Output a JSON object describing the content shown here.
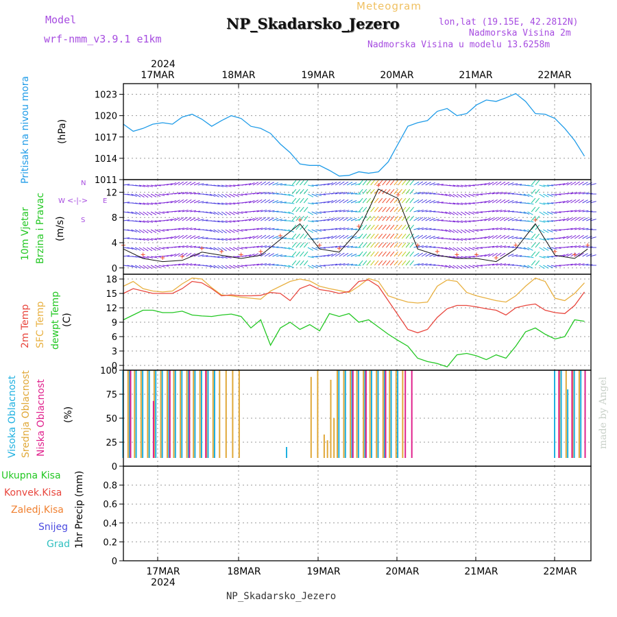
{
  "header": {
    "model_label": "Model",
    "model_value": "wrf-nmm_v3.9.1 e1km",
    "meteogram_label": "Meteogram",
    "station_title": "NP_Skadarsko_Jezero",
    "lonlat": "lon,lat (19.15E, 42.2812N)",
    "elevation": "Nadmorska Visina 2m",
    "model_elevation": "Nadmorska Visina u modelu 13.6258m",
    "watermark": "made by Angel",
    "footer_station": "NP_Skadarsko_Jezero"
  },
  "x_axis": {
    "year": "2024",
    "dates": [
      "17MAR",
      "18MAR",
      "19MAR",
      "20MAR",
      "21MAR",
      "22MAR"
    ]
  },
  "panels": {
    "pressure": {
      "label1": "Pritisak na nivou mora",
      "unit": "(hPa)"
    },
    "wind": {
      "label1": "10m Vjetar",
      "label2": "Brzina i Pravac",
      "unit": "(m/s)",
      "compass": [
        "N",
        "E",
        "S",
        "W"
      ]
    },
    "temp": {
      "label1": "2m Temp",
      "label2": "SFC Temp",
      "label3": "dewpt Temp",
      "unit": "(C)"
    },
    "cloud": {
      "label1": "Visoka Oblacnost",
      "label2": "Srednja Oblacnost",
      "label3": "Niska Oblacnost",
      "unit": "(%)"
    },
    "precip": {
      "unit": "1hr Precip (mm)",
      "legend": [
        "Ukupna Kisa",
        "Konvek.Kisa",
        "Zaledj.Kisa",
        "Snijeg",
        "Grad"
      ]
    }
  },
  "colors": {
    "pressure": "#1e9be8",
    "temp2m": "#e8453c",
    "sfc": "#e8b040",
    "dewpt": "#22c722",
    "cloud_high": "#1eb0e0",
    "cloud_mid": "#e0a838",
    "cloud_low": "#e0208c",
    "total_rain": "#22c722",
    "conv_rain": "#e8453c",
    "freezing": "#f08030",
    "snow": "#4a4ae0",
    "grad": "#30c0c0",
    "title_purple": "#a64ce0",
    "meteogram_gold": "#f0c060"
  },
  "chart_data": [
    {
      "type": "line",
      "name": "pressure",
      "ylabel": "Pritisak na nivou mora (hPa)",
      "ylim": [
        1011,
        1024.5
      ],
      "yticks": [
        1011,
        1014,
        1017,
        1020,
        1023
      ],
      "x_hours": [
        0,
        3,
        6,
        9,
        12,
        15,
        18,
        21,
        24,
        27,
        30,
        33,
        36,
        39,
        42,
        45,
        48,
        51,
        54,
        57,
        60,
        63,
        66,
        69,
        72,
        75,
        78,
        81,
        84,
        87,
        90,
        93,
        96,
        99,
        102,
        105,
        108,
        111,
        114,
        117,
        120,
        123,
        126,
        129,
        132,
        135,
        138,
        141
      ],
      "series": [
        {
          "values": [
            1018.8,
            1017.8,
            1018.2,
            1018.8,
            1019.0,
            1018.8,
            1019.8,
            1020.2,
            1019.5,
            1018.5,
            1019.3,
            1020.0,
            1019.6,
            1018.5,
            1018.2,
            1017.5,
            1016.0,
            1014.8,
            1013.2,
            1013.0,
            1013.0,
            1012.3,
            1011.5,
            1011.6,
            1012.1,
            1011.9,
            1012.1,
            1013.5,
            1016.0,
            1018.5,
            1019.0,
            1019.3,
            1020.6,
            1021.0,
            1020.0,
            1020.3,
            1021.5,
            1022.2,
            1022.0,
            1022.5,
            1023.1,
            1022.0,
            1020.3,
            1020.2,
            1019.6,
            1018.2,
            1016.5,
            1014.3
          ]
        }
      ]
    },
    {
      "type": "line",
      "name": "wind",
      "ylabel": "10m Vjetar Brzina i Pravac (m/s)",
      "ylim": [
        -1,
        14
      ],
      "yticks": [
        0,
        4,
        8,
        12
      ],
      "x_hours": [
        0,
        6,
        12,
        18,
        24,
        30,
        36,
        42,
        48,
        54,
        60,
        66,
        72,
        78,
        84,
        90,
        96,
        102,
        108,
        114,
        120,
        126,
        132,
        138,
        142
      ],
      "series": [
        {
          "name": "speed",
          "values": [
            3.0,
            1.5,
            1.0,
            1.2,
            2.5,
            2.0,
            1.5,
            2.0,
            4.5,
            7.0,
            3.0,
            2.5,
            6.0,
            12.5,
            11.0,
            3.0,
            2.0,
            1.5,
            1.5,
            1.0,
            3.0,
            7.0,
            2.0,
            1.5,
            3.0
          ]
        }
      ]
    },
    {
      "type": "line",
      "name": "temperature",
      "ylabel": "(C)",
      "ylim": [
        -1,
        19
      ],
      "yticks": [
        0,
        3,
        6,
        9,
        12,
        15,
        18
      ],
      "x_hours": [
        0,
        3,
        6,
        9,
        12,
        15,
        18,
        21,
        24,
        27,
        30,
        33,
        36,
        39,
        42,
        45,
        48,
        51,
        54,
        57,
        60,
        63,
        66,
        69,
        72,
        75,
        78,
        81,
        84,
        87,
        90,
        93,
        96,
        99,
        102,
        105,
        108,
        111,
        114,
        117,
        120,
        123,
        126,
        129,
        132,
        135,
        138,
        141
      ],
      "series": [
        {
          "name": "2m Temp",
          "values": [
            15,
            16,
            15.5,
            15,
            15,
            15,
            16,
            17.5,
            17.2,
            16,
            14.5,
            14.7,
            14.5,
            14.5,
            14.6,
            15.2,
            15,
            13.5,
            16,
            16.8,
            15.8,
            15.5,
            15,
            15.4,
            17.5,
            17.8,
            16.5,
            13.5,
            10.5,
            7.5,
            6.8,
            7.5,
            10,
            11.8,
            12.5,
            12.5,
            12.2,
            11.8,
            11.5,
            10.5,
            12,
            12.5,
            12.8,
            11.5,
            11,
            10.8,
            12.5,
            15.3
          ]
        },
        {
          "name": "SFC Temp",
          "values": [
            16.5,
            17.5,
            16,
            15.5,
            15.3,
            15.5,
            17,
            18.2,
            18,
            16.2,
            14.7,
            14.5,
            14.2,
            14,
            13.8,
            15.5,
            16.5,
            17.5,
            18,
            17.6,
            16.5,
            16,
            15.6,
            15.2,
            16.5,
            18.1,
            17.5,
            14.5,
            13.8,
            13.2,
            13,
            13.2,
            16.5,
            17.8,
            17.5,
            15.2,
            14.5,
            14,
            13.5,
            13.2,
            14.5,
            16.5,
            18.2,
            17.5,
            14,
            13.5,
            15,
            17.2
          ]
        },
        {
          "name": "dewpt Temp",
          "values": [
            9.5,
            10.5,
            11.5,
            11.5,
            11,
            11,
            11.3,
            10.5,
            10.3,
            10.2,
            10.5,
            10.7,
            10.2,
            7.8,
            9.5,
            4.2,
            7.8,
            9,
            7.5,
            8.5,
            7.2,
            10.8,
            10.2,
            10.8,
            9,
            9.5,
            8,
            6.5,
            5.2,
            4,
            1.5,
            0.8,
            0.4,
            -0.3,
            2.2,
            2.5,
            2,
            1.2,
            2.2,
            1.5,
            4,
            7,
            7.8,
            6.5,
            5.5,
            6,
            9.5,
            9.2
          ]
        }
      ]
    },
    {
      "type": "bar",
      "name": "cloud cover",
      "ylabel": "(%)",
      "ylim": [
        0,
        100
      ],
      "yticks": [
        0,
        25,
        50,
        75,
        100
      ],
      "series": [
        {
          "name": "Visoka Oblacnost",
          "hours": [
            0,
            2,
            4,
            6,
            8,
            10,
            12,
            14,
            16,
            18,
            20,
            22,
            24,
            26,
            28,
            48,
            50,
            66,
            68,
            70,
            72,
            74,
            76,
            78,
            80,
            82,
            84,
            132,
            134,
            136,
            138,
            140
          ],
          "values": [
            100,
            100,
            100,
            100,
            100,
            100,
            100,
            100,
            100,
            100,
            100,
            100,
            100,
            100,
            100,
            0,
            20,
            100,
            100,
            100,
            100,
            100,
            100,
            100,
            100,
            100,
            100,
            100,
            100,
            80,
            100,
            100
          ]
        },
        {
          "name": "Srednja Oblacnost",
          "hours": [
            1,
            3,
            5,
            7,
            9,
            11,
            13,
            15,
            17,
            19,
            21,
            23,
            25,
            27,
            29,
            31,
            33,
            35,
            57,
            59,
            61,
            62,
            63,
            64,
            65,
            67,
            69,
            71,
            73,
            75,
            77,
            79,
            81,
            83,
            85,
            133,
            135,
            137,
            139
          ],
          "values": [
            100,
            100,
            100,
            100,
            100,
            100,
            100,
            100,
            100,
            100,
            100,
            100,
            100,
            100,
            100,
            100,
            100,
            100,
            93,
            100,
            33,
            27,
            90,
            50,
            100,
            100,
            100,
            100,
            100,
            100,
            100,
            100,
            100,
            100,
            100,
            100,
            100,
            100,
            100
          ]
        },
        {
          "name": "Niska Oblacnost",
          "hours": [
            2,
            9,
            14,
            20,
            25,
            70,
            74,
            80,
            86,
            88,
            133,
            137,
            141
          ],
          "values": [
            100,
            68,
            100,
            100,
            100,
            100,
            100,
            100,
            100,
            100,
            100,
            100,
            100
          ]
        }
      ]
    },
    {
      "type": "bar",
      "name": "precipitation",
      "ylabel": "1hr Precip (mm)",
      "ylim": [
        0,
        1
      ],
      "yticks": [
        0,
        0.2,
        0.4,
        0.6,
        0.8
      ],
      "series": [
        {
          "name": "Ukupna Kisa",
          "values": []
        }
      ]
    }
  ]
}
